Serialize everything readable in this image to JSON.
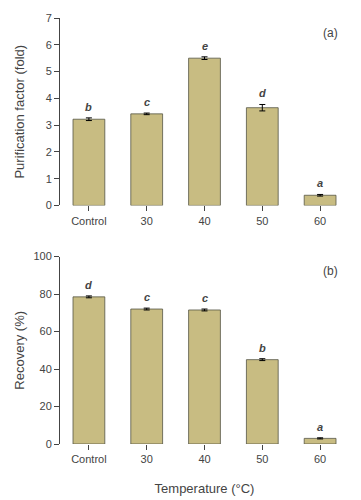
{
  "chart_data": [
    {
      "type": "bar",
      "categories": [
        "Control",
        "30",
        "40",
        "50",
        "60"
      ],
      "values": [
        3.22,
        3.42,
        5.5,
        3.65,
        0.38
      ],
      "errors": [
        0.05,
        0.03,
        0.05,
        0.12,
        0.03
      ],
      "letters": [
        "b",
        "c",
        "e",
        "d",
        "a"
      ],
      "panel_label": "(a)",
      "ylabel": "Purification factor (fold)",
      "ylim": [
        0,
        7
      ],
      "yticks": [
        0,
        1,
        2,
        3,
        4,
        5,
        6,
        7
      ],
      "color": "#c8bc82",
      "grid": false
    },
    {
      "type": "bar",
      "categories": [
        "Control",
        "30",
        "40",
        "50",
        "60"
      ],
      "values": [
        78.5,
        72.0,
        71.5,
        45.0,
        3.0
      ],
      "errors": [
        0.5,
        0.5,
        0.5,
        0.5,
        0.3
      ],
      "letters": [
        "d",
        "c",
        "c",
        "b",
        "a"
      ],
      "panel_label": "(b)",
      "ylabel": "Recovery (%)",
      "xlabel": "Temperature (°C)",
      "ylim": [
        0,
        100
      ],
      "yticks": [
        0,
        20,
        40,
        60,
        80,
        100
      ],
      "color": "#c8bc82",
      "grid": false
    }
  ]
}
